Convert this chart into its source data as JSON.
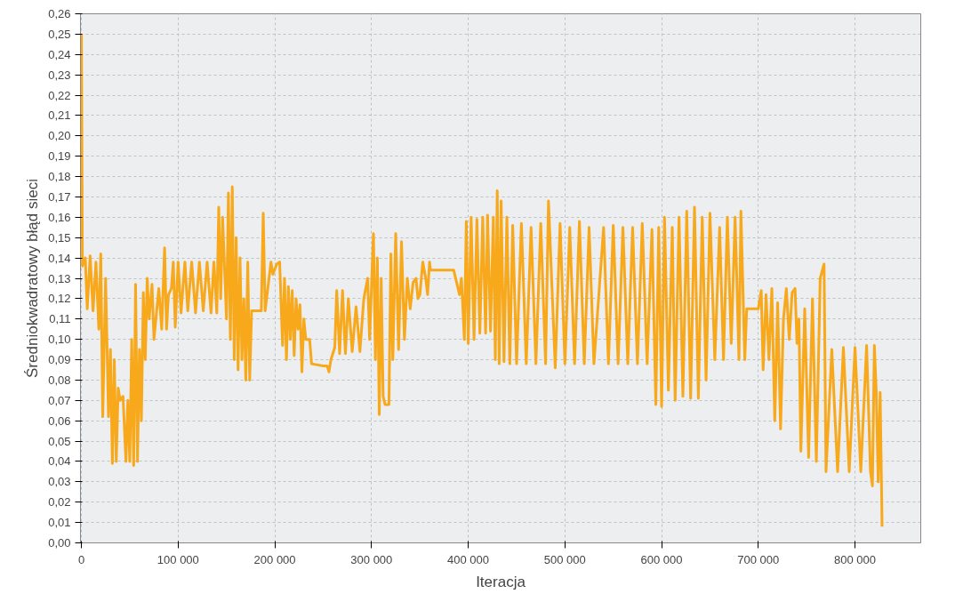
{
  "chart_data": {
    "type": "line",
    "xlabel": "Iteracja",
    "ylabel": "Średniokwadratowy błąd sieci",
    "xlim": [
      -1000,
      868000
    ],
    "ylim": [
      0,
      0.26
    ],
    "xticks": [
      {
        "value": 0,
        "label": "0"
      },
      {
        "value": 100000,
        "label": "100 000"
      },
      {
        "value": 200000,
        "label": "200 000"
      },
      {
        "value": 300000,
        "label": "300 000"
      },
      {
        "value": 400000,
        "label": "400 000"
      },
      {
        "value": 500000,
        "label": "500 000"
      },
      {
        "value": 600000,
        "label": "600 000"
      },
      {
        "value": 700000,
        "label": "700 000"
      },
      {
        "value": 800000,
        "label": "800 000"
      }
    ],
    "yticks": [
      {
        "value": 0,
        "label": "0,00"
      },
      {
        "value": 0.01,
        "label": "0,01"
      },
      {
        "value": 0.02,
        "label": "0,02"
      },
      {
        "value": 0.03,
        "label": "0,03"
      },
      {
        "value": 0.04,
        "label": "0,04"
      },
      {
        "value": 0.05,
        "label": "0,05"
      },
      {
        "value": 0.06,
        "label": "0,06"
      },
      {
        "value": 0.07,
        "label": "0,07"
      },
      {
        "value": 0.08,
        "label": "0,08"
      },
      {
        "value": 0.09,
        "label": "0,09"
      },
      {
        "value": 0.1,
        "label": "0,10"
      },
      {
        "value": 0.11,
        "label": "0,11"
      },
      {
        "value": 0.12,
        "label": "0,12"
      },
      {
        "value": 0.13,
        "label": "0,13"
      },
      {
        "value": 0.14,
        "label": "0,14"
      },
      {
        "value": 0.15,
        "label": "0,15"
      },
      {
        "value": 0.16,
        "label": "0,16"
      },
      {
        "value": 0.17,
        "label": "0,17"
      },
      {
        "value": 0.18,
        "label": "0,18"
      },
      {
        "value": 0.19,
        "label": "0,19"
      },
      {
        "value": 0.2,
        "label": "0,20"
      },
      {
        "value": 0.21,
        "label": "0,21"
      },
      {
        "value": 0.22,
        "label": "0,22"
      },
      {
        "value": 0.23,
        "label": "0,23"
      },
      {
        "value": 0.24,
        "label": "0,24"
      },
      {
        "value": 0.25,
        "label": "0,25"
      },
      {
        "value": 0.26,
        "label": "0,26"
      }
    ],
    "grid": true,
    "line_style": "solid",
    "series": [
      {
        "color": "#f7a81b",
        "x": [
          0,
          1000,
          4000,
          6000,
          9000,
          12000,
          15000,
          18000,
          20000,
          22000,
          25000,
          28000,
          30000,
          32000,
          34000,
          36000,
          38000,
          40000,
          43000,
          46000,
          48000,
          50000,
          52000,
          54000,
          56000,
          58000,
          60000,
          62000,
          64000,
          66000,
          68000,
          70000,
          73000,
          75000,
          78000,
          80000,
          83000,
          86000,
          88000,
          90000,
          93000,
          95000,
          97000,
          100000,
          103000,
          107000,
          110000,
          114000,
          118000,
          122000,
          126000,
          130000,
          134000,
          137000,
          140000,
          142000,
          144000,
          146000,
          148000,
          150000,
          152000,
          154000,
          156000,
          158000,
          160000,
          162000,
          164000,
          166000,
          168000,
          170000,
          172000,
          174000,
          176000,
          186000,
          188000,
          190000,
          193000,
          196000,
          198000,
          202000,
          205000,
          208000,
          210000,
          212000,
          214000,
          216000,
          218000,
          220000,
          222000,
          224000,
          226000,
          228000,
          230000,
          232000,
          236000,
          238000,
          250000,
          254000,
          256000,
          258000,
          262000,
          264000,
          267000,
          270000,
          273000,
          276000,
          280000,
          284000,
          288000,
          292000,
          296000,
          298000,
          302000,
          304000,
          306000,
          308000,
          310000,
          312000,
          314000,
          318000,
          320000,
          322000,
          325000,
          328000,
          331000,
          334000,
          337000,
          340000,
          343000,
          346000,
          348000,
          350000,
          353000,
          356000,
          358000,
          360000,
          361000,
          380000,
          385000,
          388000,
          391000,
          393000,
          396000,
          398000,
          400000,
          403000,
          406000,
          409000,
          412000,
          415000,
          418000,
          420000,
          423000,
          426000,
          428000,
          430000,
          432000,
          434000,
          437000,
          440000,
          443000,
          446000,
          450000,
          455000,
          460000,
          465000,
          470000,
          475000,
          480000,
          483000,
          490000,
          495000,
          500000,
          505000,
          510000,
          515000,
          520000,
          525000,
          530000,
          540000,
          545000,
          550000,
          555000,
          560000,
          565000,
          570000,
          575000,
          580000,
          585000,
          590000,
          594000,
          597000,
          600000,
          603000,
          607000,
          611000,
          614000,
          618000,
          622000,
          626000,
          630000,
          634000,
          638000,
          642000,
          646000,
          650000,
          655000,
          660000,
          664000,
          668000,
          672000,
          676000,
          680000,
          682000,
          686000,
          688000,
          700000,
          703000,
          705000,
          708000,
          711000,
          714000,
          717000,
          720000,
          723000,
          726000,
          729000,
          732000,
          735000,
          738000,
          740000,
          742000,
          744000,
          748000,
          752000,
          756000,
          760000,
          764000,
          768000,
          770000,
          776000,
          782000,
          788000,
          794000,
          800000,
          806000,
          812000,
          816000,
          818000,
          820000,
          822000,
          824000,
          826000,
          828000
        ],
        "values": [
          0.25,
          0.136,
          0.14,
          0.115,
          0.141,
          0.114,
          0.138,
          0.105,
          0.142,
          0.062,
          0.13,
          0.062,
          0.095,
          0.039,
          0.09,
          0.04,
          0.076,
          0.07,
          0.072,
          0.04,
          0.07,
          0.04,
          0.1,
          0.038,
          0.127,
          0.04,
          0.095,
          0.06,
          0.123,
          0.09,
          0.13,
          0.11,
          0.127,
          0.1,
          0.115,
          0.125,
          0.105,
          0.145,
          0.105,
          0.122,
          0.125,
          0.138,
          0.106,
          0.138,
          0.113,
          0.138,
          0.114,
          0.138,
          0.113,
          0.138,
          0.114,
          0.138,
          0.113,
          0.138,
          0.113,
          0.165,
          0.12,
          0.16,
          0.135,
          0.11,
          0.172,
          0.1,
          0.175,
          0.09,
          0.15,
          0.085,
          0.14,
          0.09,
          0.12,
          0.08,
          0.138,
          0.08,
          0.114,
          0.114,
          0.162,
          0.114,
          0.126,
          0.138,
          0.132,
          0.137,
          0.138,
          0.097,
          0.13,
          0.09,
          0.126,
          0.1,
          0.124,
          0.092,
          0.12,
          0.105,
          0.117,
          0.084,
          0.11,
          0.1,
          0.1,
          0.088,
          0.087,
          0.087,
          0.084,
          0.09,
          0.096,
          0.124,
          0.093,
          0.124,
          0.093,
          0.12,
          0.094,
          0.116,
          0.094,
          0.12,
          0.13,
          0.1,
          0.152,
          0.09,
          0.14,
          0.063,
          0.13,
          0.072,
          0.068,
          0.068,
          0.142,
          0.09,
          0.152,
          0.095,
          0.148,
          0.1,
          0.13,
          0.115,
          0.128,
          0.13,
          0.12,
          0.122,
          0.138,
          0.13,
          0.122,
          0.138,
          0.134,
          0.134,
          0.134,
          0.128,
          0.122,
          0.13,
          0.1,
          0.158,
          0.098,
          0.16,
          0.1,
          0.159,
          0.103,
          0.16,
          0.103,
          0.161,
          0.104,
          0.16,
          0.09,
          0.173,
          0.088,
          0.168,
          0.089,
          0.16,
          0.088,
          0.156,
          0.088,
          0.157,
          0.088,
          0.155,
          0.088,
          0.157,
          0.088,
          0.168,
          0.086,
          0.157,
          0.088,
          0.155,
          0.088,
          0.158,
          0.088,
          0.155,
          0.088,
          0.155,
          0.088,
          0.156,
          0.088,
          0.155,
          0.088,
          0.155,
          0.088,
          0.157,
          0.088,
          0.154,
          0.068,
          0.155,
          0.067,
          0.16,
          0.075,
          0.155,
          0.07,
          0.16,
          0.072,
          0.163,
          0.071,
          0.165,
          0.071,
          0.16,
          0.08,
          0.162,
          0.09,
          0.155,
          0.09,
          0.16,
          0.098,
          0.16,
          0.09,
          0.163,
          0.09,
          0.115,
          0.115,
          0.124,
          0.085,
          0.122,
          0.09,
          0.125,
          0.06,
          0.118,
          0.056,
          0.11,
          0.125,
          0.1,
          0.123,
          0.125,
          0.098,
          0.11,
          0.045,
          0.115,
          0.042,
          0.12,
          0.04,
          0.13,
          0.137,
          0.035,
          0.095,
          0.035,
          0.096,
          0.035,
          0.096,
          0.035,
          0.097,
          0.035,
          0.028,
          0.097,
          0.074,
          0.03,
          0.074,
          0.008
        ]
      }
    ]
  }
}
